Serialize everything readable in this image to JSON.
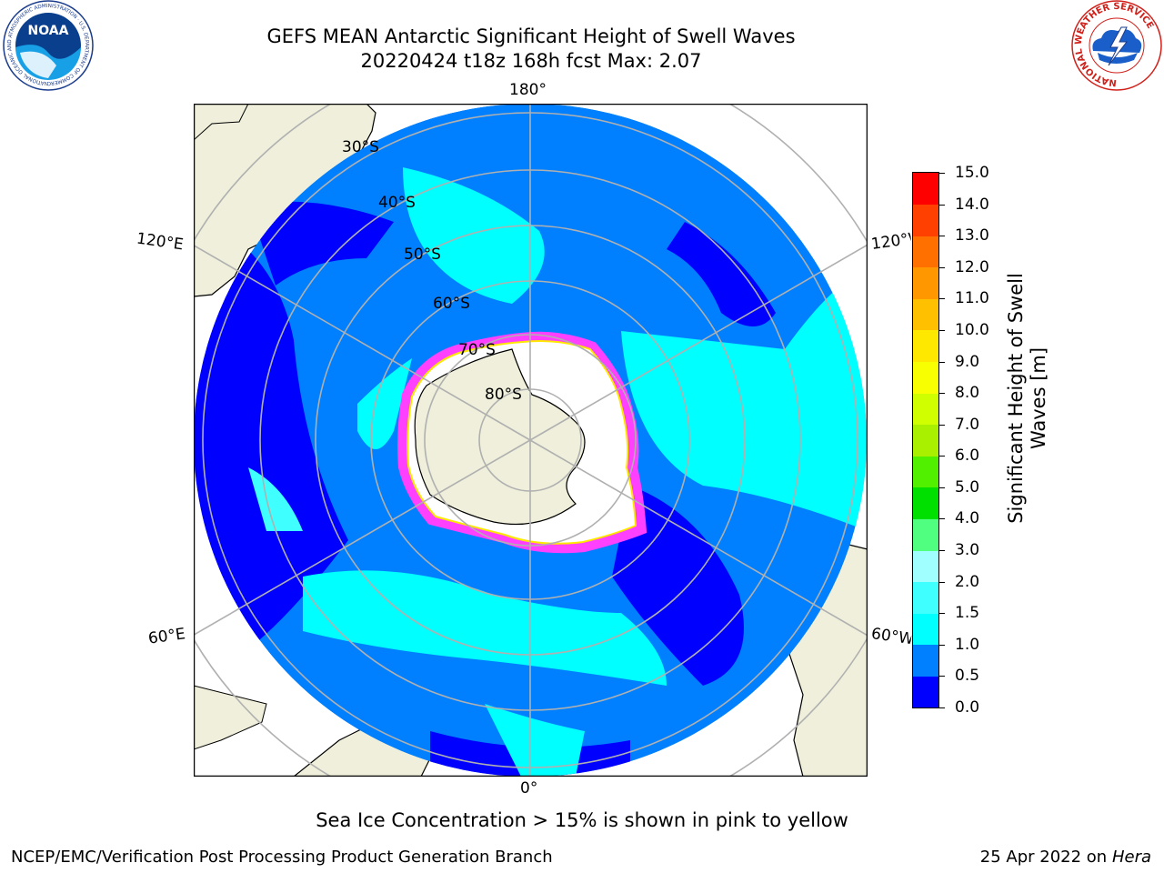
{
  "title": {
    "line1": "GEFS MEAN Antarctic Significant Height of Swell Waves",
    "line2": "20220424 t18z 168h fcst   Max: 2.07"
  },
  "map": {
    "projection": "south-polar-stereographic",
    "longitude_labels": {
      "top": "180°",
      "bottom": "0°",
      "left_upper": "120°E",
      "left_lower": "60°E",
      "right_upper": "120°W",
      "right_lower": "60°W"
    },
    "latitude_labels": [
      "30°S",
      "40°S",
      "50°S",
      "60°S",
      "70°S",
      "80°S"
    ],
    "colors": {
      "land": "#efefdb",
      "ice_free_land": "#ffffff",
      "grid": "#b0b0b0",
      "coast": "#000000"
    }
  },
  "colorbar": {
    "title_line1": "Significant Height of Swell",
    "title_line2": "Waves [m]",
    "ticks": [
      "0.0",
      "0.5",
      "1.0",
      "1.5",
      "2.0",
      "3.0",
      "4.0",
      "5.0",
      "6.0",
      "7.0",
      "8.0",
      "9.0",
      "10.0",
      "11.0",
      "12.0",
      "13.0",
      "14.0",
      "15.0"
    ],
    "colors": [
      "#0000ff",
      "#0080ff",
      "#00ffff",
      "#40ffff",
      "#a0ffff",
      "#50ff80",
      "#00e000",
      "#50f000",
      "#a8f000",
      "#d0ff00",
      "#f8ff00",
      "#ffe800",
      "#ffc000",
      "#ff9800",
      "#ff7000",
      "#ff4000",
      "#ff0000"
    ]
  },
  "note": "Sea Ice Concentration > 15% is shown in pink to yellow",
  "footer": {
    "left": "NCEP/EMC/Verification Post Processing Product Generation Branch",
    "right_prefix": "25 Apr 2022 on ",
    "right_machine": "Hera"
  },
  "logos": {
    "noaa_text": "NOAA",
    "noaa_ring": "NATIONAL OCEANIC AND ATMOSPHERIC ADMINISTRATION · U.S. DEPARTMENT OF COMMERCE",
    "nws_ring": "NATIONAL WEATHER SERVICE"
  }
}
